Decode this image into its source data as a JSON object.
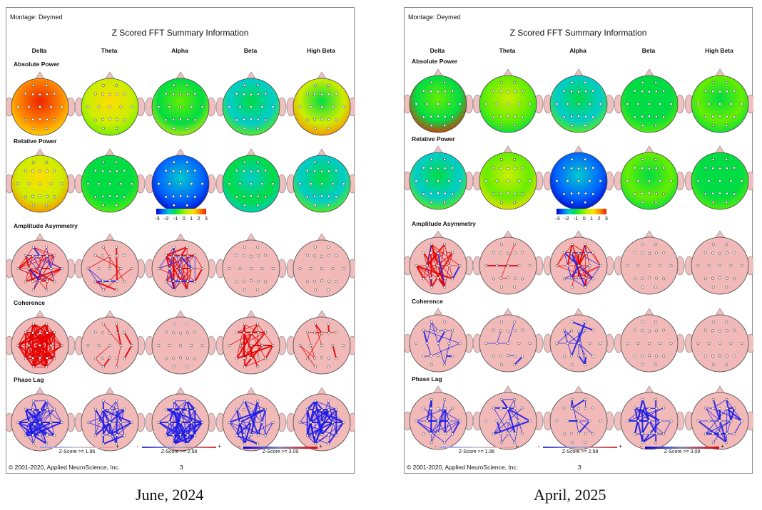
{
  "panels": [
    {
      "montage": "Montage:  Deymed",
      "title": "Z Scored FFT Summary Information",
      "bands": [
        "Delta",
        "Theta",
        "Alpha",
        "Beta",
        "High Beta"
      ],
      "rows": [
        "Absolute Power",
        "Relative Power",
        "Amplitude Asymmetry",
        "Coherence",
        "Phase Lag"
      ],
      "colorbar": {
        "ticks": [
          "-3",
          "-2",
          "-1",
          "0",
          "1",
          "2",
          "3"
        ]
      },
      "zscore_legend": [
        {
          "minus": "-",
          "text": "Z-Score >= 1.96",
          "plus": "+"
        },
        {
          "minus": "-",
          "text": "Z-Score >= 2.58",
          "plus": "+"
        },
        {
          "minus": "-",
          "text": "Z-Score >= 3.09",
          "plus": "+"
        }
      ],
      "copyright": "© 2001-2020, Applied NeuroScience, Inc.",
      "page": "3",
      "caption": "June, 2024"
    },
    {
      "montage": "Montage:  Deymed",
      "title": "Z Scored FFT Summary Information",
      "bands": [
        "Delta",
        "Theta",
        "Alpha",
        "Beta",
        "High Beta"
      ],
      "rows": [
        "Absolute Power",
        "Relative Power",
        "Amplitude Asymmetry",
        "Coherence",
        "Phase Lag"
      ],
      "colorbar": {
        "ticks": [
          "-3",
          "-2",
          "-1",
          "0",
          "1",
          "2",
          "3"
        ]
      },
      "zscore_legend": [
        {
          "minus": "-",
          "text": "Z-Score >= 1.96",
          "plus": "+"
        },
        {
          "minus": "-",
          "text": "Z-Score >= 2.58",
          "plus": "+"
        },
        {
          "minus": "-",
          "text": "Z-Score >= 3.09",
          "plus": "+"
        }
      ],
      "copyright": "© 2001-2020, Applied NeuroScience, Inc.",
      "page": "3",
      "caption": "April, 2025"
    }
  ],
  "colors": {
    "scale": [
      "#0000cc",
      "#0066ff",
      "#00cccc",
      "#00dd44",
      "#66ee00",
      "#ccee00",
      "#ffdd00",
      "#ff8800",
      "#ee2200"
    ],
    "connection_red": "#e60000",
    "connection_blue": "#1a1aee",
    "head_pink": "#f2b9b9"
  }
}
